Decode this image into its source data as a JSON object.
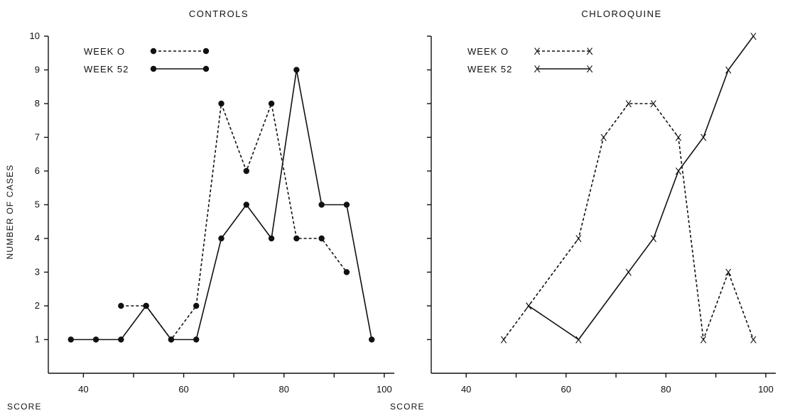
{
  "chart_data": [
    {
      "type": "line",
      "title": "CONTROLS",
      "xlabel": "SCORE",
      "ylabel": "NUMBER OF CASES",
      "xlim": [
        33,
        102
      ],
      "ylim": [
        0,
        10
      ],
      "x_ticks": [
        40,
        50,
        60,
        70,
        80,
        90,
        100
      ],
      "x_tick_labels": [
        "40",
        "",
        "60",
        "",
        "80",
        "",
        "100"
      ],
      "y_ticks": [
        1,
        2,
        3,
        4,
        5,
        6,
        7,
        8,
        9,
        10
      ],
      "y_tick_labels": [
        "1",
        "2",
        "3",
        "4",
        "5",
        "6",
        "7",
        "8",
        "9",
        "10"
      ],
      "legend_position": "top-left",
      "series": [
        {
          "name": "WEEK 0",
          "style": "dashed",
          "marker": "dot",
          "x": [
            47.5,
            52.5,
            57.5,
            62.5,
            67.5,
            72.5,
            77.5,
            82.5,
            87.5,
            92.5
          ],
          "y": [
            2,
            2,
            1,
            2,
            8,
            6,
            8,
            4,
            4,
            3
          ]
        },
        {
          "name": "WEEK 52",
          "style": "solid",
          "marker": "dot",
          "x": [
            37.5,
            42.5,
            47.5,
            52.5,
            57.5,
            62.5,
            67.5,
            72.5,
            77.5,
            82.5,
            87.5,
            92.5,
            97.5
          ],
          "y": [
            1,
            1,
            1,
            2,
            1,
            1,
            4,
            5,
            4,
            9,
            5,
            5,
            1
          ]
        }
      ]
    },
    {
      "type": "line",
      "title": "CHLOROQUINE",
      "xlabel": "SCORE",
      "ylabel": "",
      "xlim": [
        33,
        102
      ],
      "ylim": [
        0,
        10
      ],
      "x_ticks": [
        40,
        50,
        60,
        70,
        80,
        90,
        100
      ],
      "x_tick_labels": [
        "40",
        "",
        "60",
        "",
        "80",
        "",
        "100"
      ],
      "y_ticks": [
        1,
        2,
        3,
        4,
        5,
        6,
        7,
        8,
        9,
        10
      ],
      "y_tick_labels": [],
      "legend_position": "top-left",
      "series": [
        {
          "name": "WEEK 0",
          "style": "dashed",
          "marker": "X",
          "x": [
            47.5,
            52.5,
            62.5,
            67.5,
            72.5,
            77.5,
            82.5,
            87.5,
            92.5,
            97.5
          ],
          "y": [
            1,
            2,
            4,
            7,
            8,
            8,
            7,
            1,
            3,
            1
          ]
        },
        {
          "name": "WEEK 52",
          "style": "solid",
          "marker": "X",
          "x": [
            52.5,
            62.5,
            72.5,
            77.5,
            82.5,
            87.5,
            92.5,
            97.5
          ],
          "y": [
            2,
            1,
            3,
            4,
            6,
            7,
            9,
            10
          ]
        }
      ]
    }
  ]
}
